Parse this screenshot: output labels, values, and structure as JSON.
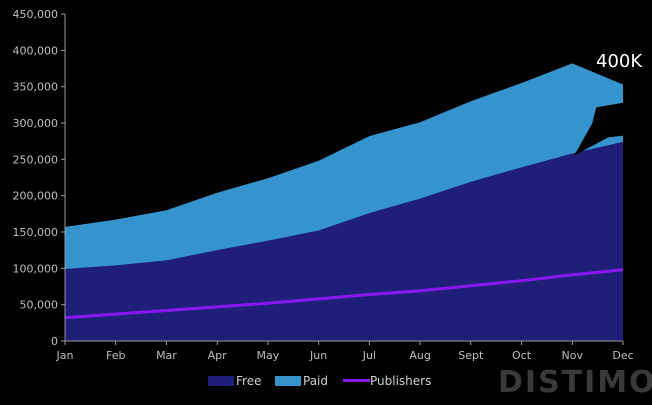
{
  "chart_data": {
    "type": "area",
    "categories": [
      "Jan",
      "Feb",
      "Mar",
      "Apr",
      "May",
      "Jun",
      "Jul",
      "Aug",
      "Sept",
      "Oct",
      "Nov",
      "Dec"
    ],
    "series": [
      {
        "name": "Free",
        "kind": "stacked-area",
        "values": [
          99000,
          104000,
          111000,
          125000,
          138000,
          152000,
          176000,
          196000,
          219000,
          239000,
          258000,
          274000
        ]
      },
      {
        "name": "Paid",
        "kind": "stacked-area",
        "values": [
          58000,
          63000,
          69000,
          79000,
          86000,
          96000,
          106000,
          105000,
          111000,
          116000,
          124000,
          79000
        ]
      },
      {
        "name": "Publishers",
        "kind": "line",
        "values": [
          32000,
          37000,
          42000,
          47000,
          52000,
          58000,
          64000,
          69000,
          76000,
          83000,
          91000,
          98000
        ]
      }
    ],
    "y_ticks": [
      "0",
      "50,000",
      "100,000",
      "150,000",
      "200,000",
      "250,000",
      "300,000",
      "350,000",
      "400,000",
      "450,000"
    ],
    "ylim": [
      0,
      450000
    ],
    "legend_position": "bottom",
    "grid": false,
    "annotation": {
      "text": "400K",
      "at_category": "Nov",
      "value": 400000
    },
    "colors": {
      "Free": "#1f1f7a",
      "Paid": "#3594cd",
      "Publishers": "#8a16f0",
      "axis": "#9a9a9a",
      "background": "#000000"
    }
  },
  "legend": {
    "free": "Free",
    "paid": "Paid",
    "publishers": "Publishers"
  },
  "brand": {
    "watermark": "DISTIMO"
  }
}
